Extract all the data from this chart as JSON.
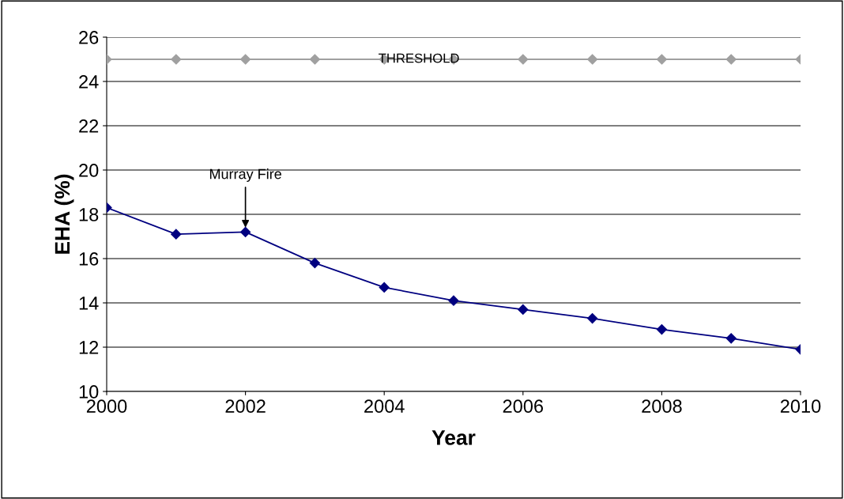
{
  "chart_data": {
    "type": "line",
    "xlabel": "Year",
    "ylabel": "EHA (%)",
    "x": [
      2000,
      2001,
      2002,
      2003,
      2004,
      2005,
      2006,
      2007,
      2008,
      2009,
      2010
    ],
    "series": [
      {
        "color": "#000080",
        "marker": "diamond",
        "values": [
          18.3,
          17.1,
          17.2,
          15.8,
          14.7,
          14.1,
          13.7,
          13.3,
          12.8,
          12.4,
          11.9
        ]
      },
      {
        "name": "THRESHOLD",
        "color": "#a0a0a0",
        "marker": "diamond",
        "values": [
          25,
          25,
          25,
          25,
          25,
          25,
          25,
          25,
          25,
          25,
          25
        ]
      }
    ],
    "xlim": [
      2000,
      2010
    ],
    "xticks": [
      2000,
      2002,
      2004,
      2006,
      2008,
      2010
    ],
    "ylim": [
      10,
      26
    ],
    "yticks": [
      10,
      12,
      14,
      16,
      18,
      20,
      22,
      24,
      26
    ],
    "grid": "y",
    "legend": false,
    "annotations": [
      {
        "text": "Murray Fire",
        "x": 2002,
        "y": 17.2
      }
    ]
  }
}
